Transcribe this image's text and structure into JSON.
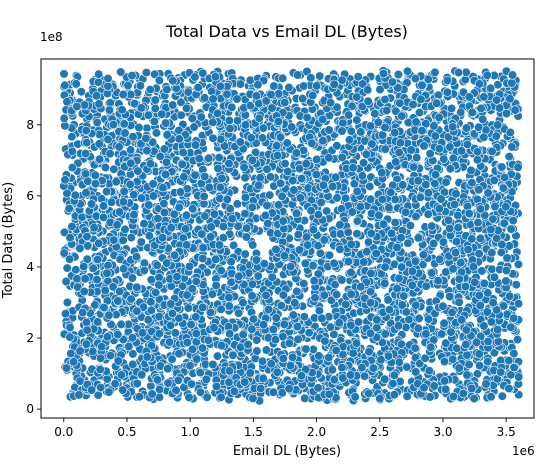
{
  "chart_data": {
    "type": "scatter",
    "title": "Total Data vs Email DL (Bytes)",
    "xlabel": "Email DL (Bytes)",
    "ylabel": "Total Data (Bytes)",
    "x_multiplier_label": "1e6",
    "y_multiplier_label": "1e8",
    "xlim": [
      -0.18,
      3.72
    ],
    "ylim": [
      -0.25,
      9.85
    ],
    "x_ticks": [
      0.0,
      0.5,
      1.0,
      1.5,
      2.0,
      2.5,
      3.0,
      3.5
    ],
    "x_tick_labels": [
      "0.0",
      "0.5",
      "1.0",
      "1.5",
      "2.0",
      "2.5",
      "3.0",
      "3.5"
    ],
    "y_ticks": [
      0,
      2,
      4,
      6,
      8
    ],
    "y_tick_labels": [
      "0",
      "2",
      "4",
      "6",
      "8"
    ],
    "grid": false,
    "legend": "none",
    "point_color": "#1f77b4",
    "point_edge_color": "#ffffff",
    "series_description": "dense uniform cloud of points spanning x from 0.0 to 3.6 (x1e6) and y from about 0.3 to 9.45 (x1e8)",
    "x_range": [
      0.0,
      3.6
    ],
    "y_range": [
      0.3,
      9.45
    ],
    "sample_points": {
      "x": [
        0.01,
        0.12,
        0.35,
        0.6,
        0.85,
        1.1,
        1.35,
        1.6,
        1.85,
        2.1,
        2.35,
        2.5,
        2.6,
        2.85,
        3.1,
        3.35,
        3.55,
        3.38,
        0.05,
        1.2
      ],
      "y": [
        6.45,
        0.4,
        9.3,
        0.35,
        5.1,
        9.45,
        0.5,
        3.2,
        9.4,
        0.42,
        7.8,
        0.3,
        9.2,
        0.6,
        4.4,
        0.32,
        9.4,
        0.35,
        2.3,
        9.35
      ]
    }
  }
}
